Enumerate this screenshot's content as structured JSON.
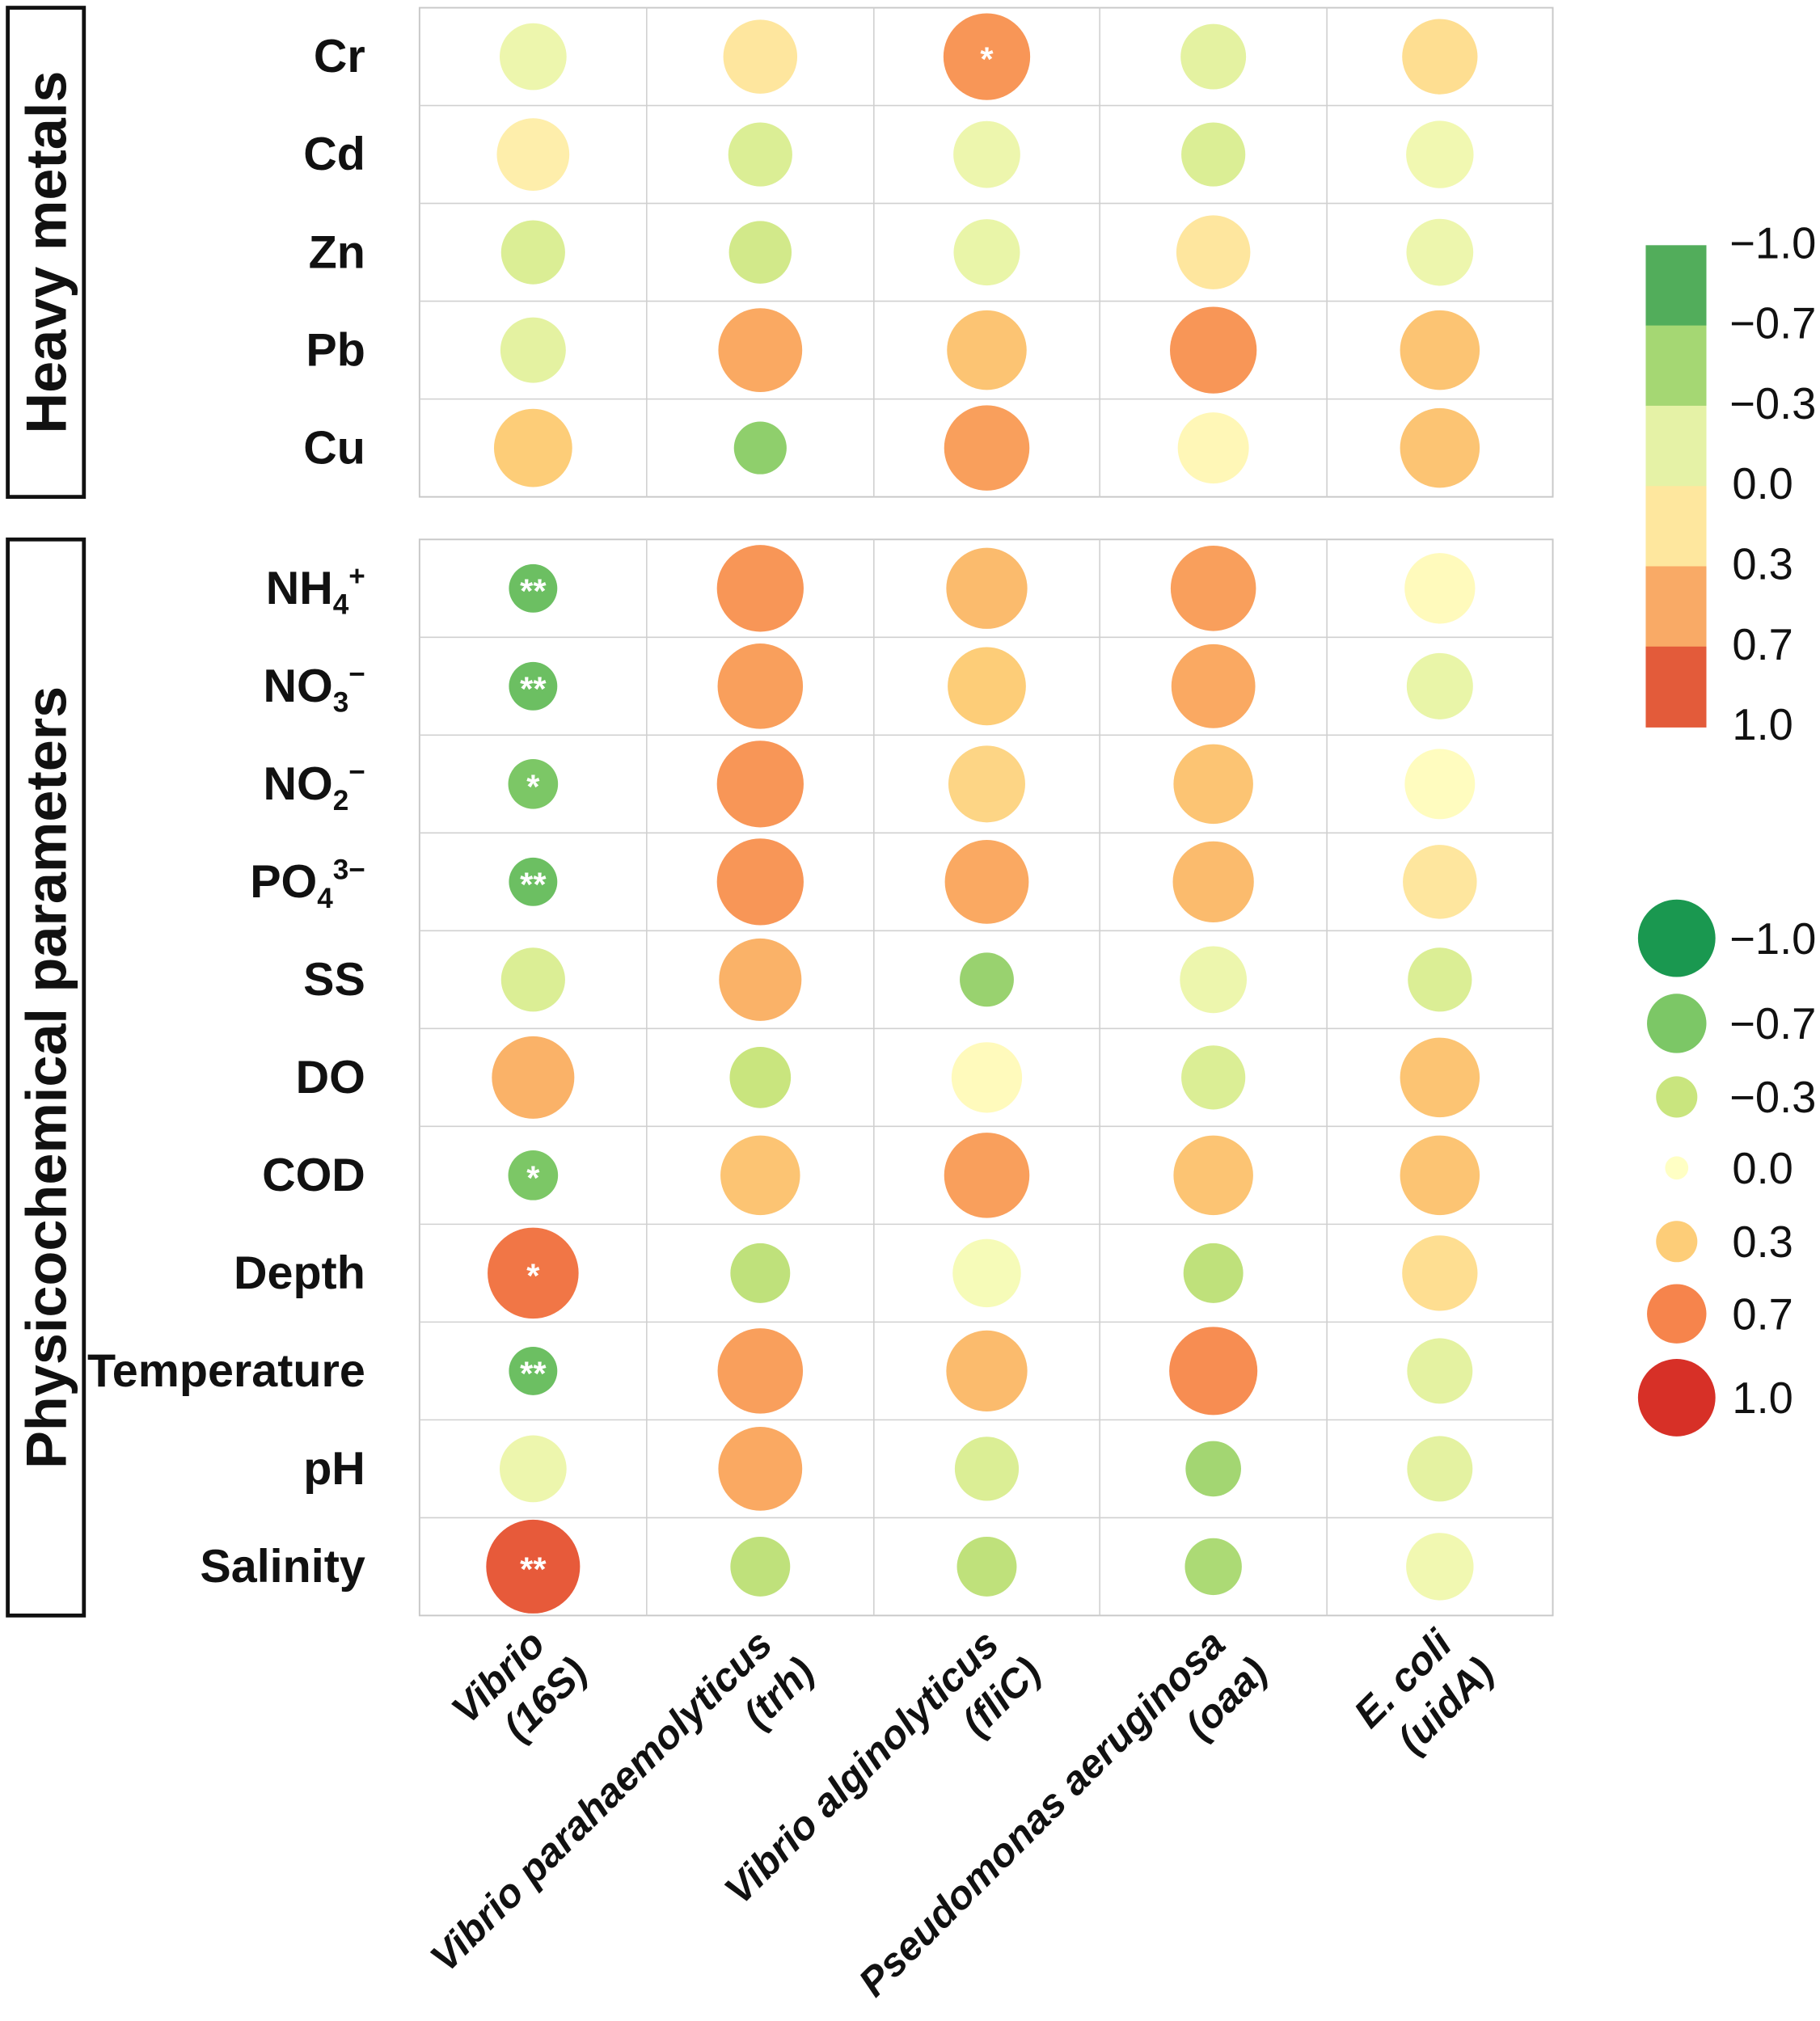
{
  "chart_data": {
    "type": "heatmap",
    "subtype": "bubble-correlation",
    "columns": [
      {
        "name": "Vibrio",
        "gene": "(16S)"
      },
      {
        "name": "Vibrio parahaemolyticus",
        "gene": "(trh)"
      },
      {
        "name": "Vibrio alginolyticus",
        "gene": "(fliC)"
      },
      {
        "name": "Pseudomonas aeruginosa",
        "gene": "(oaa)"
      },
      {
        "name": "E. coli",
        "gene": "(uidA)"
      }
    ],
    "groups": [
      {
        "label": "Heavy metals",
        "rows": [
          {
            "label": "Cr",
            "values": [
              -0.1,
              0.15,
              0.6,
              -0.15,
              0.2
            ],
            "sig": [
              "",
              "",
              "*",
              "",
              ""
            ]
          },
          {
            "label": "Cd",
            "values": [
              0.1,
              -0.2,
              -0.1,
              -0.2,
              -0.08
            ],
            "sig": [
              "",
              "",
              "",
              "",
              ""
            ]
          },
          {
            "label": "Zn",
            "values": [
              -0.2,
              -0.25,
              -0.12,
              0.15,
              -0.1
            ],
            "sig": [
              "",
              "",
              "",
              "",
              ""
            ]
          },
          {
            "label": "Pb",
            "values": [
              -0.15,
              0.5,
              0.35,
              0.6,
              0.35
            ],
            "sig": [
              "",
              "",
              "",
              "",
              ""
            ]
          },
          {
            "label": "Cu",
            "values": [
              0.3,
              -0.6,
              0.55,
              0.05,
              0.35
            ],
            "sig": [
              "",
              "",
              "",
              "",
              ""
            ]
          }
        ]
      },
      {
        "label": "Physicochemical parameters",
        "rows": [
          {
            "label": "NH",
            "sub": "4",
            "sup": "+",
            "values": [
              -0.75,
              0.6,
              0.4,
              0.55,
              0.03
            ],
            "sig": [
              "**",
              "",
              "",
              "",
              ""
            ]
          },
          {
            "label": "NO",
            "sub": "3",
            "sup": "−",
            "values": [
              -0.75,
              0.55,
              0.3,
              0.5,
              -0.12
            ],
            "sig": [
              "**",
              "",
              "",
              "",
              ""
            ]
          },
          {
            "label": "NO",
            "sub": "2",
            "sup": "−",
            "values": [
              -0.7,
              0.6,
              0.25,
              0.35,
              0.02
            ],
            "sig": [
              "*",
              "",
              "",
              "",
              ""
            ]
          },
          {
            "label": "PO",
            "sub": "4",
            "sup": "3−",
            "values": [
              -0.75,
              0.6,
              0.5,
              0.4,
              0.15
            ],
            "sig": [
              "**",
              "",
              "",
              "",
              ""
            ]
          },
          {
            "label": "SS",
            "values": [
              -0.2,
              0.45,
              -0.55,
              -0.1,
              -0.2
            ],
            "sig": [
              "",
              "",
              "",
              "",
              ""
            ]
          },
          {
            "label": "DO",
            "values": [
              0.45,
              -0.3,
              0.03,
              -0.2,
              0.35
            ],
            "sig": [
              "",
              "",
              "",
              "",
              ""
            ]
          },
          {
            "label": "COD",
            "values": [
              -0.7,
              0.35,
              0.55,
              0.35,
              0.35
            ],
            "sig": [
              "*",
              "",
              "",
              "",
              ""
            ]
          },
          {
            "label": "Depth",
            "values": [
              0.75,
              -0.35,
              -0.05,
              -0.35,
              0.2
            ],
            "sig": [
              "*",
              "",
              "",
              "",
              ""
            ]
          },
          {
            "label": "Temperature",
            "values": [
              -0.75,
              0.55,
              0.4,
              0.65,
              -0.15
            ],
            "sig": [
              "**",
              "",
              "",
              "",
              ""
            ]
          },
          {
            "label": "pH",
            "values": [
              -0.1,
              0.5,
              -0.2,
              -0.5,
              -0.15
            ],
            "sig": [
              "",
              "",
              "",
              "",
              ""
            ]
          },
          {
            "label": "Salinity",
            "values": [
              0.85,
              -0.35,
              -0.35,
              -0.45,
              -0.08
            ],
            "sig": [
              "**",
              "",
              "",
              "",
              ""
            ]
          }
        ]
      }
    ],
    "color_legend": {
      "ticks": [
        "−1.0",
        "−0.7",
        "−0.3",
        "0.0",
        "0.3",
        "0.7",
        "1.0"
      ],
      "colors": [
        "#52ad5b",
        "#a5d773",
        "#e5f2a6",
        "#fee79e",
        "#f9aa66",
        "#e35b3a"
      ]
    },
    "size_legend": {
      "ticks": [
        "−1.0",
        "−0.7",
        "−0.3",
        "0.0",
        "0.3",
        "0.7",
        "1.0"
      ],
      "values": [
        -1.0,
        -0.7,
        -0.3,
        0.0,
        0.3,
        0.7,
        1.0
      ],
      "colors": [
        "#1a9850",
        "#7cc766",
        "#c9e57e",
        "#ffffc4",
        "#fdcd78",
        "#f6844c",
        "#d73027"
      ]
    },
    "range": [
      -1,
      1
    ]
  }
}
